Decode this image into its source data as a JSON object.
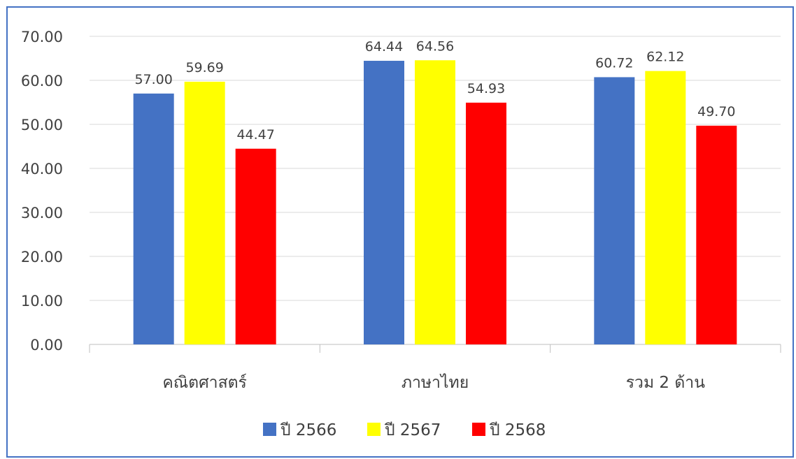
{
  "chart_data": {
    "type": "bar",
    "title": "",
    "xlabel": "",
    "ylabel": "",
    "categories": [
      "คณิตศาสตร์",
      "ภาษาไทย",
      "รวม 2 ด้าน"
    ],
    "series": [
      {
        "name": "ปี 2566",
        "color": "#4472c4",
        "values": [
          57.0,
          64.44,
          60.72
        ],
        "labels": [
          "57.00",
          "64.44",
          "60.72"
        ]
      },
      {
        "name": "ปี 2567",
        "color": "#ffff00",
        "values": [
          59.69,
          64.56,
          62.12
        ],
        "labels": [
          "59.69",
          "64.56",
          "62.12"
        ]
      },
      {
        "name": "ปี 2568",
        "color": "#ff0000",
        "values": [
          44.47,
          54.93,
          49.7
        ],
        "labels": [
          "44.47",
          "54.93",
          "49.70"
        ]
      }
    ],
    "ylim": [
      0,
      70
    ],
    "yticks": [
      "0.00",
      "10.00",
      "20.00",
      "30.00",
      "40.00",
      "50.00",
      "60.00",
      "70.00"
    ],
    "grid": true,
    "legend_position": "bottom"
  }
}
